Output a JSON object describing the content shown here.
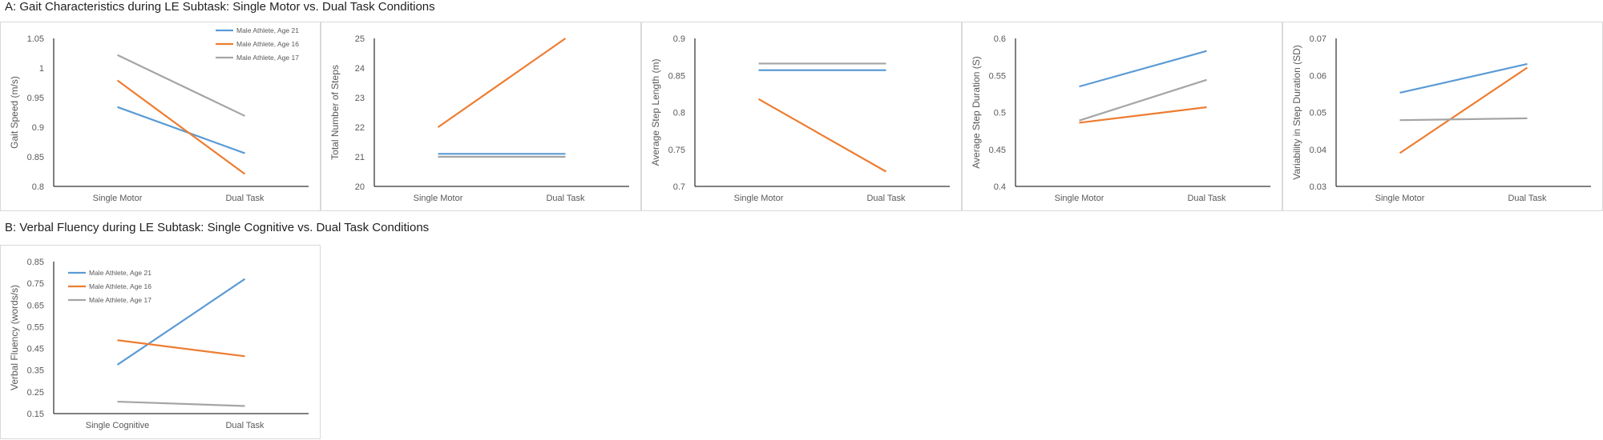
{
  "section_a": {
    "title": "A: Gait Characteristics during LE Subtask: Single Motor vs. Dual Task Conditions"
  },
  "section_b": {
    "title": "B: Verbal Fluency during LE Subtask: Single Cognitive vs. Dual Task Conditions"
  },
  "colors": {
    "age21": "#5b9bd5",
    "age16": "#ed7d31",
    "age17": "#a5a5a5",
    "axis": "#000000",
    "tick_text": "#595959"
  },
  "chart_data": [
    {
      "type": "line",
      "categories": [
        "Single Motor",
        "Dual Task"
      ],
      "ylabel": "Gait Speed (m/s)",
      "ylim": [
        0.8,
        1.05
      ],
      "yticks": [
        0.8,
        0.85,
        0.9,
        0.95,
        1,
        1.05
      ],
      "ytick_labels": [
        "0.8",
        "0.85",
        "0.9",
        "0.95",
        "1",
        "1.05"
      ],
      "legend": "top-right",
      "grid": false,
      "series": [
        {
          "name": "Male Athlete, Age 21",
          "color": "#5b9bd5",
          "values": [
            0.934,
            0.856
          ]
        },
        {
          "name": "Male Athlete, Age 16",
          "color": "#ed7d31",
          "values": [
            0.979,
            0.821
          ]
        },
        {
          "name": "Male Athlete, Age 17",
          "color": "#a5a5a5",
          "values": [
            1.022,
            0.919
          ]
        }
      ]
    },
    {
      "type": "line",
      "categories": [
        "Single Motor",
        "Dual Task"
      ],
      "ylabel": "Total Number of Steps",
      "ylim": [
        20,
        25
      ],
      "yticks": [
        20,
        21,
        22,
        23,
        24,
        25
      ],
      "ytick_labels": [
        "20",
        "21",
        "22",
        "23",
        "24",
        "25"
      ],
      "grid": false,
      "series": [
        {
          "color": "#5b9bd5",
          "values": [
            21.1,
            21.1
          ]
        },
        {
          "color": "#ed7d31",
          "values": [
            22,
            25
          ]
        },
        {
          "color": "#a5a5a5",
          "values": [
            21,
            21
          ]
        }
      ]
    },
    {
      "type": "line",
      "categories": [
        "Single Motor",
        "Dual Task"
      ],
      "ylabel": "Average Step Length (m)",
      "ylim": [
        0.7,
        0.9
      ],
      "yticks": [
        0.7,
        0.75,
        0.8,
        0.85,
        0.9
      ],
      "ytick_labels": [
        "0.7",
        "0.75",
        "0.8",
        "0.85",
        "0.9"
      ],
      "grid": false,
      "series": [
        {
          "color": "#5b9bd5",
          "values": [
            0.857,
            0.857
          ]
        },
        {
          "color": "#ed7d31",
          "values": [
            0.818,
            0.72
          ]
        },
        {
          "color": "#a5a5a5",
          "values": [
            0.866,
            0.866
          ]
        }
      ]
    },
    {
      "type": "line",
      "categories": [
        "Single Motor",
        "Dual Task"
      ],
      "ylabel": "Average Step Duration (S)",
      "ylim": [
        0.4,
        0.6
      ],
      "yticks": [
        0.4,
        0.45,
        0.5,
        0.55,
        0.6
      ],
      "ytick_labels": [
        "0.4",
        "0.45",
        "0.5",
        "0.55",
        "0.6"
      ],
      "grid": false,
      "series": [
        {
          "color": "#5b9bd5",
          "values": [
            0.535,
            0.583
          ]
        },
        {
          "color": "#ed7d31",
          "values": [
            0.486,
            0.507
          ]
        },
        {
          "color": "#a5a5a5",
          "values": [
            0.489,
            0.544
          ]
        }
      ]
    },
    {
      "type": "line",
      "categories": [
        "Single Motor",
        "Dual Task"
      ],
      "ylabel": "Variability in Step Duration (SD)",
      "ylim": [
        0.03,
        0.07
      ],
      "yticks": [
        0.03,
        0.04,
        0.05,
        0.06,
        0.07
      ],
      "ytick_labels": [
        "0.03",
        "0.04",
        "0.05",
        "0.06",
        "0.07"
      ],
      "grid": false,
      "series": [
        {
          "color": "#5b9bd5",
          "values": [
            0.0553,
            0.0631
          ]
        },
        {
          "color": "#ed7d31",
          "values": [
            0.039,
            0.0621
          ]
        },
        {
          "color": "#a5a5a5",
          "values": [
            0.0479,
            0.0484
          ]
        }
      ]
    },
    {
      "type": "line",
      "categories": [
        "Single Cognitive",
        "Dual Task"
      ],
      "ylabel": "Verbal Fluency (words/s)",
      "ylim": [
        0.15,
        0.85
      ],
      "yticks": [
        0.15,
        0.25,
        0.35,
        0.45,
        0.55,
        0.65,
        0.75,
        0.85
      ],
      "ytick_labels": [
        "0.15",
        "0.25",
        "0.35",
        "0.45",
        "0.55",
        "0.65",
        "0.75",
        "0.85"
      ],
      "legend": "top-left",
      "grid": false,
      "series": [
        {
          "name": "Male Athlete, Age 21",
          "color": "#5b9bd5",
          "values": [
            0.375,
            0.77
          ]
        },
        {
          "name": "Male Athlete, Age 16",
          "color": "#ed7d31",
          "values": [
            0.488,
            0.414
          ]
        },
        {
          "name": "Male Athlete, Age 17",
          "color": "#a5a5a5",
          "values": [
            0.205,
            0.185
          ]
        }
      ]
    }
  ]
}
